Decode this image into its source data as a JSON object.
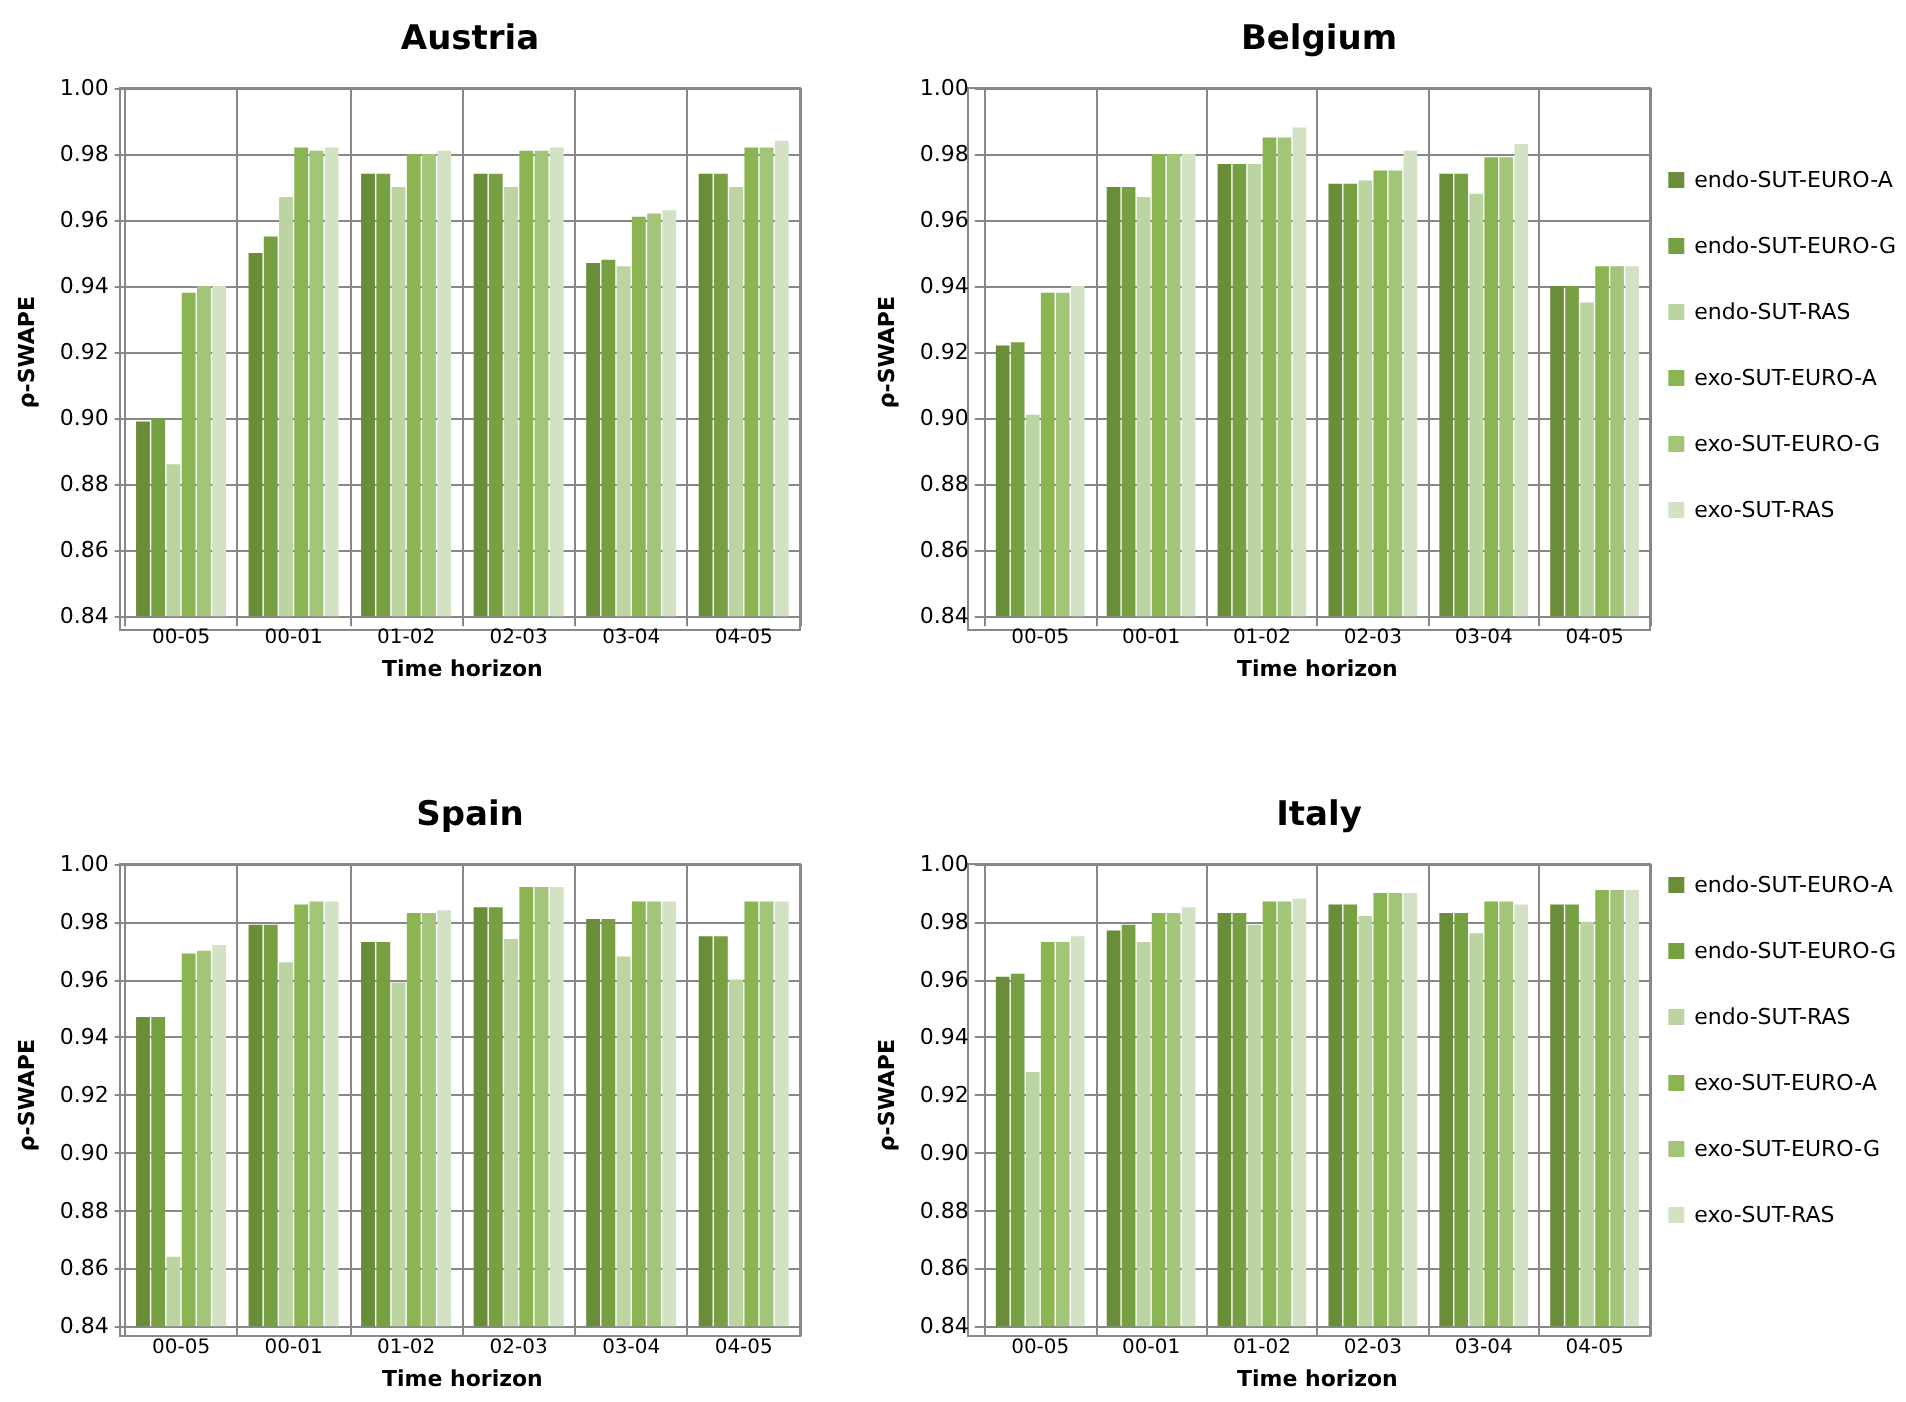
{
  "chart_data": [
    {
      "type": "bar",
      "title": "Austria",
      "xlabel": "Time horizon",
      "ylabel": "ρ-SWAPE",
      "categories": [
        "00-05",
        "00-01",
        "01-02",
        "02-03",
        "03-04",
        "04-05"
      ],
      "ylim": [
        0.84,
        1.0
      ],
      "yticks": [
        {
          "value": 0.84,
          "label": "0.84"
        },
        {
          "value": 0.86,
          "label": "0.86"
        },
        {
          "value": 0.88,
          "label": "0.88"
        },
        {
          "value": 0.9,
          "label": "0.90"
        },
        {
          "value": 0.92,
          "label": "0.92"
        },
        {
          "value": 0.94,
          "label": "0.94"
        },
        {
          "value": 0.96,
          "label": "0.96"
        },
        {
          "value": 0.98,
          "label": "0.98"
        },
        {
          "value": 1.0,
          "label": "1.00"
        }
      ],
      "grid": true,
      "legend": false,
      "series": [
        {
          "color": "#6a8d3a",
          "values": [
            0.899,
            0.95,
            0.974,
            0.974,
            0.947,
            0.974
          ]
        },
        {
          "color": "#77a043",
          "values": [
            0.9,
            0.955,
            0.974,
            0.974,
            0.948,
            0.974
          ]
        },
        {
          "color": "#bcd4a2",
          "values": [
            0.886,
            0.967,
            0.97,
            0.97,
            0.946,
            0.97
          ]
        },
        {
          "color": "#8ab552",
          "values": [
            0.938,
            0.982,
            0.98,
            0.981,
            0.961,
            0.982
          ]
        },
        {
          "color": "#a3c57a",
          "values": [
            0.94,
            0.981,
            0.98,
            0.981,
            0.962,
            0.982
          ]
        },
        {
          "color": "#d3e2c4",
          "values": [
            0.94,
            0.982,
            0.981,
            0.982,
            0.963,
            0.984
          ]
        }
      ]
    },
    {
      "type": "bar",
      "title": "Belgium",
      "xlabel": "Time horizon",
      "ylabel": "ρ-SWAPE",
      "categories": [
        "00-05",
        "00-01",
        "01-02",
        "02-03",
        "03-04",
        "04-05"
      ],
      "ylim": [
        0.84,
        1.0
      ],
      "yticks": [
        {
          "value": 0.84,
          "label": "0.84"
        },
        {
          "value": 0.86,
          "label": "0.86"
        },
        {
          "value": 0.88,
          "label": "0.88"
        },
        {
          "value": 0.9,
          "label": "0.90"
        },
        {
          "value": 0.92,
          "label": "0.92"
        },
        {
          "value": 0.94,
          "label": "0.94"
        },
        {
          "value": 0.96,
          "label": "0.96"
        },
        {
          "value": 0.98,
          "label": "0.98"
        },
        {
          "value": 1.0,
          "label": "1.00"
        }
      ],
      "grid": true,
      "legend": "right",
      "series": [
        {
          "name": "endo-SUT-EURO-A",
          "color": "#6a8d3a",
          "values": [
            0.922,
            0.97,
            0.977,
            0.971,
            0.974,
            0.94
          ]
        },
        {
          "name": "endo-SUT-EURO-G",
          "color": "#77a043",
          "values": [
            0.923,
            0.97,
            0.977,
            0.971,
            0.974,
            0.94
          ]
        },
        {
          "name": "endo-SUT-RAS",
          "color": "#bcd4a2",
          "values": [
            0.901,
            0.967,
            0.977,
            0.972,
            0.968,
            0.935
          ]
        },
        {
          "name": "exo-SUT-EURO-A",
          "color": "#8ab552",
          "values": [
            0.938,
            0.98,
            0.985,
            0.975,
            0.979,
            0.946
          ]
        },
        {
          "name": "exo-SUT-EURO-G",
          "color": "#a3c57a",
          "values": [
            0.938,
            0.98,
            0.985,
            0.975,
            0.979,
            0.946
          ]
        },
        {
          "name": "exo-SUT-RAS",
          "color": "#d3e2c4",
          "values": [
            0.94,
            0.98,
            0.988,
            0.981,
            0.983,
            0.946
          ]
        }
      ]
    },
    {
      "type": "bar",
      "title": "Spain",
      "xlabel": "Time horizon",
      "ylabel": "ρ-SWAPE",
      "categories": [
        "00-05",
        "00-01",
        "01-02",
        "02-03",
        "03-04",
        "04-05"
      ],
      "ylim": [
        0.84,
        1.0
      ],
      "yticks": [
        {
          "value": 0.84,
          "label": "0.84"
        },
        {
          "value": 0.86,
          "label": "0.86"
        },
        {
          "value": 0.88,
          "label": "0.88"
        },
        {
          "value": 0.9,
          "label": "0.90"
        },
        {
          "value": 0.92,
          "label": "0.92"
        },
        {
          "value": 0.94,
          "label": "0.94"
        },
        {
          "value": 0.96,
          "label": "0.96"
        },
        {
          "value": 0.98,
          "label": "0.98"
        },
        {
          "value": 1.0,
          "label": "1.00"
        }
      ],
      "grid": true,
      "legend": false,
      "series": [
        {
          "color": "#6a8d3a",
          "values": [
            0.947,
            0.979,
            0.973,
            0.985,
            0.981,
            0.975
          ]
        },
        {
          "color": "#77a043",
          "values": [
            0.947,
            0.979,
            0.973,
            0.985,
            0.981,
            0.975
          ]
        },
        {
          "color": "#bcd4a2",
          "values": [
            0.864,
            0.966,
            0.959,
            0.974,
            0.968,
            0.96
          ]
        },
        {
          "color": "#8ab552",
          "values": [
            0.969,
            0.986,
            0.983,
            0.992,
            0.987,
            0.987
          ]
        },
        {
          "color": "#a3c57a",
          "values": [
            0.97,
            0.987,
            0.983,
            0.992,
            0.987,
            0.987
          ]
        },
        {
          "color": "#d3e2c4",
          "values": [
            0.972,
            0.987,
            0.984,
            0.992,
            0.987,
            0.987
          ]
        }
      ]
    },
    {
      "type": "bar",
      "title": "Italy",
      "xlabel": "Time horizon",
      "ylabel": "ρ-SWAPE",
      "categories": [
        "00-05",
        "00-01",
        "01-02",
        "02-03",
        "03-04",
        "04-05"
      ],
      "ylim": [
        0.84,
        1.0
      ],
      "yticks": [
        {
          "value": 0.84,
          "label": "0.84"
        },
        {
          "value": 0.86,
          "label": "0.86"
        },
        {
          "value": 0.88,
          "label": "0.88"
        },
        {
          "value": 0.9,
          "label": "0.90"
        },
        {
          "value": 0.92,
          "label": "0.92"
        },
        {
          "value": 0.94,
          "label": "0.94"
        },
        {
          "value": 0.96,
          "label": "0.96"
        },
        {
          "value": 0.98,
          "label": "0.98"
        },
        {
          "value": 1.0,
          "label": "1.00"
        }
      ],
      "grid": true,
      "legend": "right",
      "series": [
        {
          "name": "endo-SUT-EURO-A",
          "color": "#6a8d3a",
          "values": [
            0.961,
            0.977,
            0.983,
            0.986,
            0.983,
            0.986
          ]
        },
        {
          "name": "endo-SUT-EURO-G",
          "color": "#77a043",
          "values": [
            0.962,
            0.979,
            0.983,
            0.986,
            0.983,
            0.986
          ]
        },
        {
          "name": "endo-SUT-RAS",
          "color": "#bcd4a2",
          "values": [
            0.928,
            0.973,
            0.979,
            0.982,
            0.976,
            0.98
          ]
        },
        {
          "name": "exo-SUT-EURO-A",
          "color": "#8ab552",
          "values": [
            0.973,
            0.983,
            0.987,
            0.99,
            0.987,
            0.991
          ]
        },
        {
          "name": "exo-SUT-EURO-G",
          "color": "#a3c57a",
          "values": [
            0.973,
            0.983,
            0.987,
            0.99,
            0.987,
            0.991
          ]
        },
        {
          "name": "exo-SUT-RAS",
          "color": "#d3e2c4",
          "values": [
            0.975,
            0.985,
            0.988,
            0.99,
            0.986,
            0.991
          ]
        }
      ]
    }
  ]
}
